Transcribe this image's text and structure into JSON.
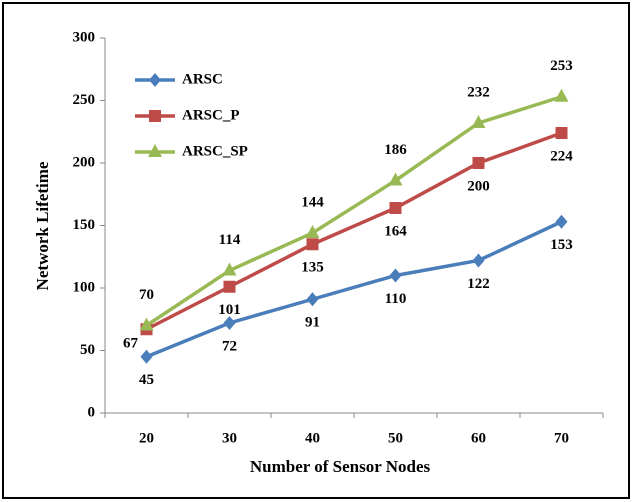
{
  "chart_data": {
    "type": "line",
    "xlabel": "Number of Sensor Nodes",
    "ylabel": "Network Lifetime",
    "categories": [
      "20",
      "30",
      "40",
      "50",
      "60",
      "70"
    ],
    "series": [
      {
        "name": "ARSC",
        "color": "#4a7ebb",
        "marker": "diamond",
        "values": [
          45,
          72,
          91,
          110,
          122,
          153
        ]
      },
      {
        "name": "ARSC_P",
        "color": "#be4b48",
        "marker": "square",
        "values": [
          67,
          101,
          135,
          164,
          200,
          224
        ]
      },
      {
        "name": "ARSC_SP",
        "color": "#98b954",
        "marker": "triangle",
        "values": [
          70,
          114,
          144,
          186,
          232,
          253
        ]
      }
    ],
    "ylim": [
      0,
      300
    ],
    "yticks": [
      0,
      50,
      100,
      150,
      200,
      250,
      300
    ],
    "grid": false,
    "legend": "upper left"
  }
}
